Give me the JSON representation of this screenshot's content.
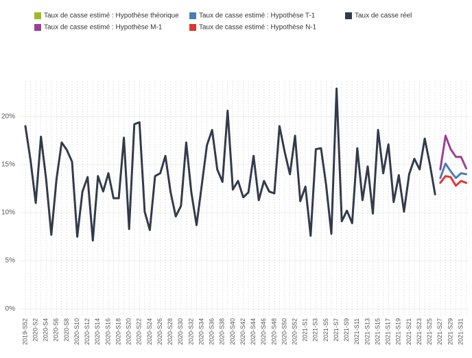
{
  "chart_data": {
    "type": "line",
    "categories": [
      "2019-S52",
      null,
      "2020-S2",
      null,
      "2020-S4",
      null,
      "2020-S6",
      null,
      "2020-S8",
      null,
      "2020-S10",
      null,
      "2020-S12",
      null,
      "2020-S14",
      null,
      "2020-S16",
      null,
      "2020-S18",
      null,
      "2020-S20",
      null,
      "2020-S22",
      null,
      "2020-S24",
      null,
      "2020-S26",
      null,
      "2020-S28",
      null,
      "2020-S30",
      null,
      "2020-S32",
      null,
      "2020-S34",
      null,
      "2020-S36",
      null,
      "2020-S38",
      null,
      "2020-S40",
      null,
      "2020-S42",
      null,
      "2020-S44",
      null,
      "2020-S46",
      null,
      "2020-S48",
      null,
      "2020-S50",
      null,
      "2020-S52",
      null,
      "2021-S1",
      null,
      "2021-S3",
      null,
      "2021-S5",
      null,
      "2021-S7",
      null,
      "2021-S9",
      null,
      "2021-S11",
      null,
      "2021-S13",
      null,
      "2021-S15",
      null,
      "2021-S17",
      null,
      "2021-S19",
      null,
      "2021-S21",
      null,
      "2021-S23",
      null,
      "2021-S25",
      null,
      "2021-S27",
      null,
      "2021-S29",
      null,
      "2021-S31",
      null
    ],
    "series": [
      {
        "name": "Taux de casse estimé : Hypothèse théorique",
        "color": "#9bbb1f",
        "values": [
          null,
          null,
          null,
          null,
          null,
          null,
          null,
          null,
          null,
          null,
          null,
          null,
          null,
          null,
          null,
          null,
          null,
          null,
          null,
          null,
          null,
          null,
          null,
          null,
          null,
          null,
          null,
          null,
          null,
          null,
          null,
          null,
          null,
          null,
          null,
          null,
          null,
          null,
          null,
          null,
          null,
          null,
          null,
          null,
          null,
          null,
          null,
          null,
          null,
          null,
          null,
          null,
          null,
          null,
          null,
          null,
          null,
          null,
          null,
          null,
          null,
          null,
          null,
          null,
          null,
          null,
          null,
          null,
          null,
          null,
          null,
          null,
          null,
          null,
          null,
          null,
          null,
          null,
          null,
          null,
          null,
          null,
          null,
          null,
          null,
          null
        ]
      },
      {
        "name": "Taux de casse estimé : Hypothèse T-1",
        "color": "#4a7eb5",
        "values": [
          null,
          null,
          null,
          null,
          null,
          null,
          null,
          null,
          null,
          null,
          null,
          null,
          null,
          null,
          null,
          null,
          null,
          null,
          null,
          null,
          null,
          null,
          null,
          null,
          null,
          null,
          null,
          null,
          null,
          null,
          null,
          null,
          null,
          null,
          null,
          null,
          null,
          null,
          null,
          null,
          null,
          null,
          null,
          null,
          null,
          null,
          null,
          null,
          null,
          null,
          null,
          null,
          null,
          null,
          null,
          null,
          null,
          null,
          null,
          null,
          null,
          null,
          null,
          null,
          null,
          null,
          null,
          null,
          null,
          null,
          null,
          null,
          null,
          null,
          null,
          null,
          null,
          null,
          null,
          null,
          13.6,
          15.1,
          14.3,
          13.6,
          14.1,
          14.0
        ]
      },
      {
        "name": "Taux de casse réel",
        "color": "#333a4b",
        "values": [
          19.0,
          15.4,
          11.0,
          17.9,
          13.5,
          7.7,
          13.5,
          17.3,
          16.5,
          15.3,
          7.5,
          12.2,
          13.7,
          7.1,
          13.8,
          12.2,
          14.1,
          11.5,
          11.5,
          17.8,
          8.3,
          19.2,
          19.4,
          10.1,
          8.2,
          13.8,
          14.1,
          15.9,
          12.1,
          9.6,
          10.7,
          17.3,
          12.1,
          8.7,
          12.8,
          17.0,
          18.6,
          14.5,
          13.2,
          20.6,
          12.4,
          13.3,
          11.6,
          12.1,
          15.9,
          11.3,
          13.3,
          12.2,
          12.0,
          19.0,
          16.3,
          14.0,
          18.0,
          11.2,
          12.7,
          7.6,
          16.6,
          16.7,
          12.8,
          7.8,
          22.9,
          9.1,
          10.2,
          8.9,
          16.7,
          11.3,
          14.8,
          9.9,
          18.6,
          14.1,
          17.1,
          11.1,
          13.9,
          10.1,
          14.0,
          15.6,
          14.5,
          17.7,
          15.0,
          11.9,
          null,
          null,
          null,
          null,
          null,
          null
        ]
      },
      {
        "name": "Taux de casse estimé : Hypothèse M-1",
        "color": "#9c3f98",
        "values": [
          null,
          null,
          null,
          null,
          null,
          null,
          null,
          null,
          null,
          null,
          null,
          null,
          null,
          null,
          null,
          null,
          null,
          null,
          null,
          null,
          null,
          null,
          null,
          null,
          null,
          null,
          null,
          null,
          null,
          null,
          null,
          null,
          null,
          null,
          null,
          null,
          null,
          null,
          null,
          null,
          null,
          null,
          null,
          null,
          null,
          null,
          null,
          null,
          null,
          null,
          null,
          null,
          null,
          null,
          null,
          null,
          null,
          null,
          null,
          null,
          null,
          null,
          null,
          null,
          null,
          null,
          null,
          null,
          null,
          null,
          null,
          null,
          null,
          null,
          null,
          null,
          null,
          null,
          null,
          null,
          14.5,
          18.0,
          16.6,
          15.8,
          15.8,
          14.6
        ]
      },
      {
        "name": "Taux de casse estimé : Hypothèse N-1",
        "color": "#e03531",
        "values": [
          null,
          null,
          null,
          null,
          null,
          null,
          null,
          null,
          null,
          null,
          null,
          null,
          null,
          null,
          null,
          null,
          null,
          null,
          null,
          null,
          null,
          null,
          null,
          null,
          null,
          null,
          null,
          null,
          null,
          null,
          null,
          null,
          null,
          null,
          null,
          null,
          null,
          null,
          null,
          null,
          null,
          null,
          null,
          null,
          null,
          null,
          null,
          null,
          null,
          null,
          null,
          null,
          null,
          null,
          null,
          null,
          null,
          null,
          null,
          null,
          null,
          null,
          null,
          null,
          null,
          null,
          null,
          null,
          null,
          null,
          null,
          null,
          null,
          null,
          null,
          null,
          null,
          null,
          null,
          null,
          13.1,
          13.8,
          13.7,
          12.8,
          13.3,
          13.1
        ]
      }
    ],
    "ylim": [
      -0.7,
      23.7
    ],
    "yticks": [
      {
        "value": 0,
        "label": "0%"
      },
      {
        "value": 5,
        "label": "5%"
      },
      {
        "value": 10,
        "label": "10%"
      },
      {
        "value": 15,
        "label": "15%"
      },
      {
        "value": 20,
        "label": "20%"
      }
    ],
    "grid": true
  }
}
